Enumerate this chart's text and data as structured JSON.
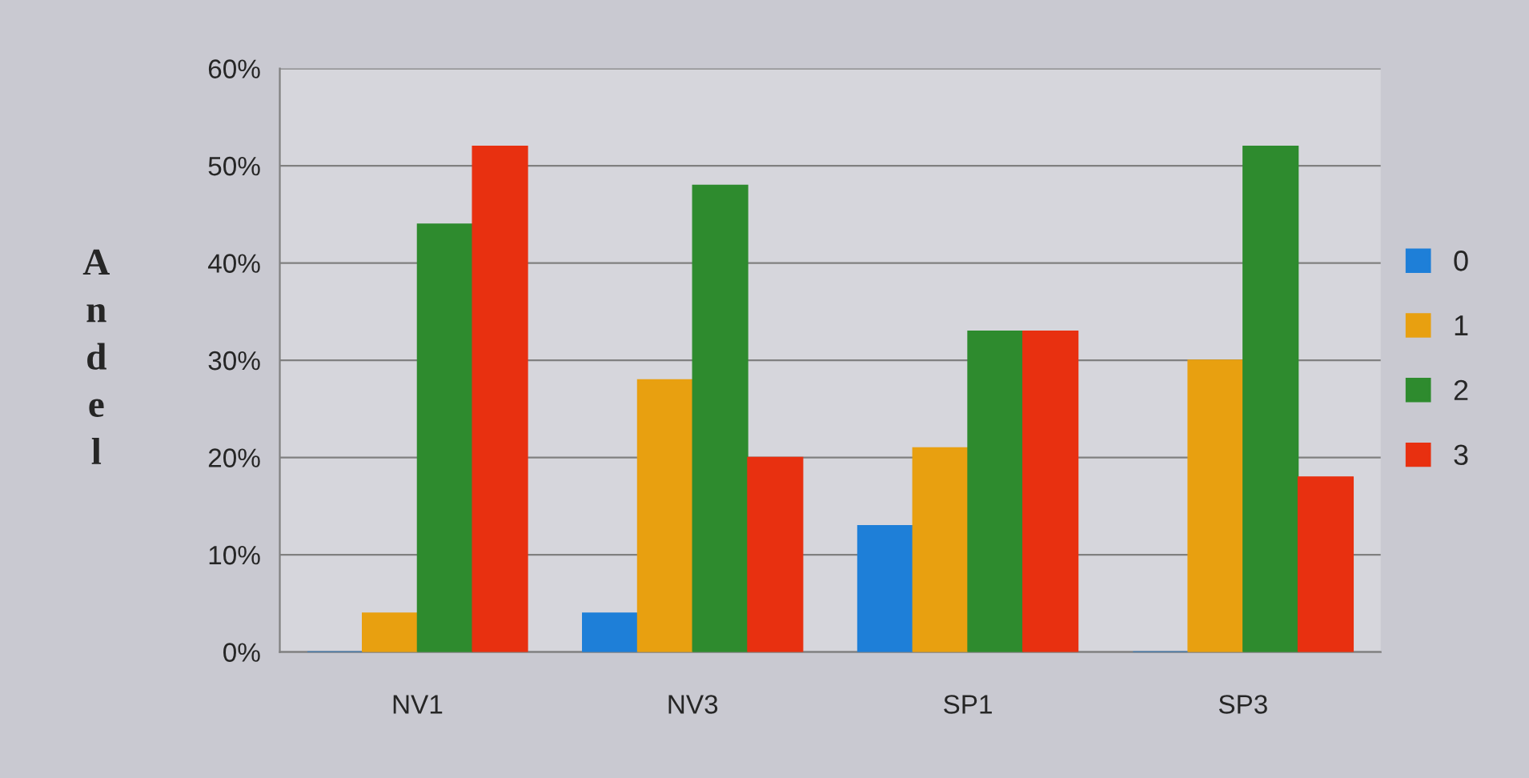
{
  "chart_data": {
    "type": "bar",
    "ylabel": "Andel",
    "categories": [
      "NV1",
      "NV3",
      "SP1",
      "SP3"
    ],
    "series": [
      {
        "name": "0",
        "color": "#1e7fd8",
        "values": [
          0,
          0.04,
          0.13,
          0
        ]
      },
      {
        "name": "1",
        "color": "#e8a010",
        "values": [
          0.04,
          0.28,
          0.21,
          0.3
        ]
      },
      {
        "name": "2",
        "color": "#2e8b2e",
        "values": [
          0.44,
          0.48,
          0.33,
          0.52
        ]
      },
      {
        "name": "3",
        "color": "#e83010",
        "values": [
          0.52,
          0.2,
          0.33,
          0.18
        ]
      }
    ],
    "ylim": [
      0,
      0.6
    ],
    "yticks": [
      {
        "value": 0,
        "label": "0%"
      },
      {
        "value": 0.1,
        "label": "10%"
      },
      {
        "value": 0.2,
        "label": "20%"
      },
      {
        "value": 0.3,
        "label": "30%"
      },
      {
        "value": 0.4,
        "label": "40%"
      },
      {
        "value": 0.5,
        "label": "50%"
      },
      {
        "value": 0.6,
        "label": "60%"
      }
    ],
    "grid": "y",
    "legend": "right"
  }
}
